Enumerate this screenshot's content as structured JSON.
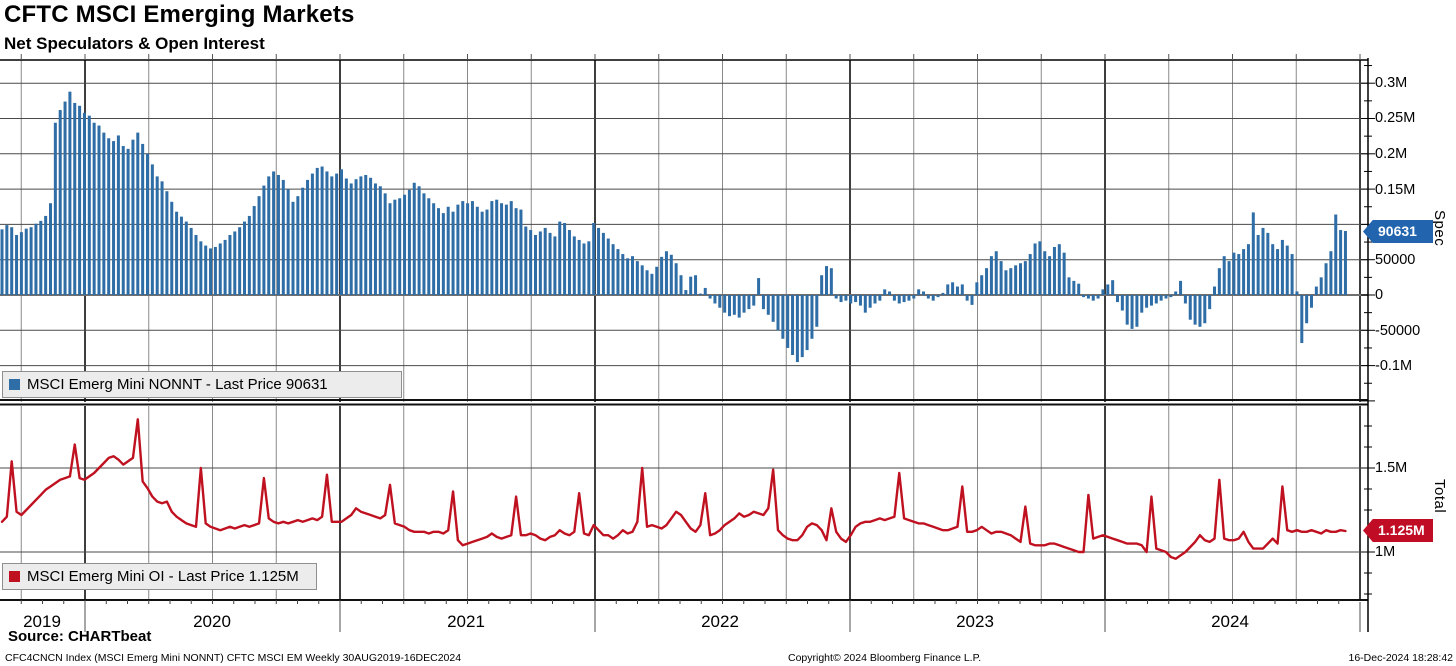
{
  "header": {
    "title": "CFTC MSCI Emerging Markets",
    "subtitle": "Net Speculators & Open Interest"
  },
  "spec_panel": {
    "legend_label": "MSCI Emerg Mini NONNT - Last Price 90631",
    "axis_title": "Spec",
    "badge": "90631",
    "ticks": [
      "0.3M",
      "0.25M",
      "0.2M",
      "0.15M",
      "0.1M",
      "50000",
      "0",
      "-50000",
      "-0.1M"
    ]
  },
  "total_panel": {
    "legend_label": "MSCI Emerg Mini OI - Last Price 1.125M",
    "axis_title": "Total",
    "badge": "1.125M",
    "ticks": [
      "1.5M",
      "1M"
    ]
  },
  "xaxis": {
    "years": [
      "2019",
      "2020",
      "2021",
      "2022",
      "2023",
      "2024"
    ]
  },
  "footer": {
    "source": "Source: CHARTbeat",
    "meta": "CFC4CNCN Index (MSCI Emerg Mini NONNT) CFTC MSCI EM  Weekly 30AUG2019-16DEC2024",
    "copyright": "Copyright© 2024 Bloomberg Finance L.P.",
    "datetime": "16-Dec-2024 18:28:42"
  },
  "chart_data": [
    {
      "type": "bar",
      "name": "MSCI Emerg Mini NONNT",
      "frequency": "weekly",
      "x_start": "30AUG2019",
      "x_end": "16DEC2024",
      "points": 278,
      "last": 90631,
      "color": "#2e6da6",
      "ylim": [
        -150000,
        330000
      ],
      "ytick_values": [
        300000,
        250000,
        200000,
        150000,
        100000,
        50000,
        0,
        -50000,
        -100000
      ],
      "values": [
        93000,
        99000,
        96000,
        85000,
        89000,
        94000,
        96000,
        101000,
        105000,
        112000,
        130000,
        244000,
        262000,
        274000,
        288000,
        272000,
        268000,
        258000,
        254000,
        244000,
        240000,
        230000,
        222000,
        218000,
        226000,
        211000,
        207000,
        220000,
        230000,
        214000,
        200000,
        185000,
        168000,
        161000,
        147000,
        132000,
        118000,
        111000,
        104000,
        95000,
        85000,
        76000,
        70000,
        66000,
        68000,
        73000,
        78000,
        85000,
        90000,
        96000,
        104000,
        112000,
        126000,
        140000,
        155000,
        168000,
        175000,
        170000,
        163000,
        150000,
        132000,
        140000,
        152000,
        163000,
        172000,
        180000,
        182000,
        175000,
        168000,
        172000,
        178000,
        165000,
        158000,
        164000,
        168000,
        170000,
        166000,
        158000,
        154000,
        144000,
        130000,
        135000,
        137000,
        142000,
        149000,
        159000,
        154000,
        144000,
        137000,
        130000,
        123000,
        116000,
        125000,
        118000,
        128000,
        133000,
        130000,
        133000,
        125000,
        118000,
        121000,
        133000,
        135000,
        130000,
        128000,
        133000,
        123000,
        121000,
        97000,
        92000,
        85000,
        90000,
        95000,
        88000,
        83000,
        104000,
        102000,
        92000,
        83000,
        78000,
        73000,
        76000,
        102000,
        95000,
        88000,
        80000,
        72000,
        65000,
        58000,
        52000,
        55000,
        48000,
        42000,
        35000,
        30000,
        40000,
        54000,
        62000,
        57000,
        45000,
        28000,
        7000,
        26000,
        28000,
        2000,
        10000,
        -5000,
        -12000,
        -18000,
        -25000,
        -30000,
        -28000,
        -32000,
        -25000,
        -20000,
        -15000,
        24000,
        -20000,
        -28000,
        -38000,
        -50000,
        -62000,
        -75000,
        -85000,
        -95000,
        -88000,
        -78000,
        -62000,
        -45000,
        28000,
        41000,
        38000,
        -5000,
        -10000,
        -8000,
        -12000,
        -10000,
        -15000,
        -25000,
        -18000,
        -12000,
        -8000,
        8000,
        5000,
        -8000,
        -12000,
        -10000,
        -8000,
        -5000,
        8000,
        5000,
        -5000,
        -8000,
        -3000,
        3000,
        15000,
        18000,
        12000,
        15000,
        -8000,
        -14000,
        18000,
        28000,
        38000,
        55000,
        62000,
        48000,
        35000,
        38000,
        42000,
        45000,
        48000,
        58000,
        73000,
        76000,
        62000,
        55000,
        68000,
        72000,
        60000,
        25000,
        20000,
        16000,
        -3000,
        -5000,
        -8000,
        -5000,
        8000,
        15000,
        21000,
        -10000,
        -22000,
        -42000,
        -48000,
        -45000,
        -25000,
        -18000,
        -15000,
        -12000,
        -8000,
        -5000,
        -3000,
        5000,
        20000,
        -12000,
        -35000,
        -42000,
        -45000,
        -40000,
        -20000,
        12000,
        38000,
        55000,
        48000,
        60000,
        58000,
        65000,
        72000,
        117000,
        85000,
        95000,
        88000,
        72000,
        65000,
        78000,
        70000,
        58000,
        5000,
        -68000,
        -40000,
        -18000,
        12000,
        25000,
        45000,
        62000,
        114000,
        92000,
        90631
      ]
    },
    {
      "type": "line",
      "name": "MSCI Emerg Mini OI",
      "frequency": "weekly",
      "x_start": "30AUG2019",
      "x_end": "16DEC2024",
      "points": 278,
      "last_millions": 1.125,
      "unit": "millions of contracts",
      "color": "#bf1120",
      "ylim_millions": [
        0.71,
        1.87
      ],
      "ytick_values_millions": [
        1.5,
        1.0
      ],
      "values_millions": [
        1.18,
        1.21,
        1.54,
        1.24,
        1.22,
        1.25,
        1.28,
        1.31,
        1.34,
        1.37,
        1.39,
        1.41,
        1.43,
        1.44,
        1.45,
        1.64,
        1.44,
        1.43,
        1.45,
        1.47,
        1.5,
        1.53,
        1.56,
        1.57,
        1.55,
        1.52,
        1.54,
        1.56,
        1.79,
        1.42,
        1.38,
        1.33,
        1.3,
        1.29,
        1.3,
        1.24,
        1.21,
        1.19,
        1.17,
        1.16,
        1.15,
        1.5,
        1.17,
        1.15,
        1.14,
        1.13,
        1.14,
        1.15,
        1.14,
        1.15,
        1.16,
        1.15,
        1.16,
        1.17,
        1.44,
        1.2,
        1.18,
        1.17,
        1.18,
        1.17,
        1.18,
        1.19,
        1.18,
        1.19,
        1.2,
        1.19,
        1.21,
        1.46,
        1.18,
        1.18,
        1.18,
        1.2,
        1.22,
        1.26,
        1.24,
        1.23,
        1.22,
        1.21,
        1.2,
        1.22,
        1.4,
        1.17,
        1.16,
        1.15,
        1.13,
        1.12,
        1.12,
        1.12,
        1.11,
        1.12,
        1.12,
        1.11,
        1.13,
        1.36,
        1.07,
        1.04,
        1.05,
        1.06,
        1.07,
        1.08,
        1.09,
        1.11,
        1.09,
        1.08,
        1.09,
        1.1,
        1.33,
        1.1,
        1.1,
        1.11,
        1.1,
        1.08,
        1.07,
        1.09,
        1.1,
        1.13,
        1.11,
        1.1,
        1.12,
        1.35,
        1.11,
        1.1,
        1.16,
        1.13,
        1.1,
        1.1,
        1.08,
        1.1,
        1.13,
        1.11,
        1.12,
        1.18,
        1.5,
        1.15,
        1.16,
        1.15,
        1.14,
        1.16,
        1.2,
        1.24,
        1.22,
        1.18,
        1.14,
        1.12,
        1.16,
        1.35,
        1.1,
        1.11,
        1.13,
        1.16,
        1.18,
        1.2,
        1.23,
        1.21,
        1.22,
        1.24,
        1.23,
        1.22,
        1.26,
        1.49,
        1.13,
        1.1,
        1.08,
        1.07,
        1.07,
        1.1,
        1.15,
        1.17,
        1.16,
        1.13,
        1.07,
        1.26,
        1.12,
        1.08,
        1.06,
        1.1,
        1.15,
        1.17,
        1.18,
        1.18,
        1.19,
        1.2,
        1.19,
        1.2,
        1.21,
        1.47,
        1.2,
        1.19,
        1.18,
        1.17,
        1.17,
        1.16,
        1.15,
        1.14,
        1.13,
        1.13,
        1.14,
        1.15,
        1.39,
        1.12,
        1.12,
        1.13,
        1.15,
        1.13,
        1.11,
        1.12,
        1.12,
        1.11,
        1.1,
        1.08,
        1.06,
        1.27,
        1.05,
        1.04,
        1.04,
        1.04,
        1.05,
        1.05,
        1.04,
        1.03,
        1.02,
        1.01,
        1.0,
        1.0,
        1.34,
        1.08,
        1.09,
        1.1,
        1.09,
        1.08,
        1.07,
        1.06,
        1.05,
        1.05,
        1.05,
        1.04,
        1.0,
        1.33,
        1.02,
        1.01,
        1.0,
        0.97,
        0.96,
        0.98,
        1.0,
        1.03,
        1.06,
        1.1,
        1.07,
        1.06,
        1.08,
        1.43,
        1.08,
        1.07,
        1.07,
        1.08,
        1.12,
        1.06,
        1.02,
        1.02,
        1.02,
        1.05,
        1.08,
        1.05,
        1.39,
        1.13,
        1.12,
        1.13,
        1.12,
        1.12,
        1.13,
        1.12,
        1.11,
        1.13,
        1.12,
        1.12,
        1.13,
        1.125
      ]
    }
  ]
}
